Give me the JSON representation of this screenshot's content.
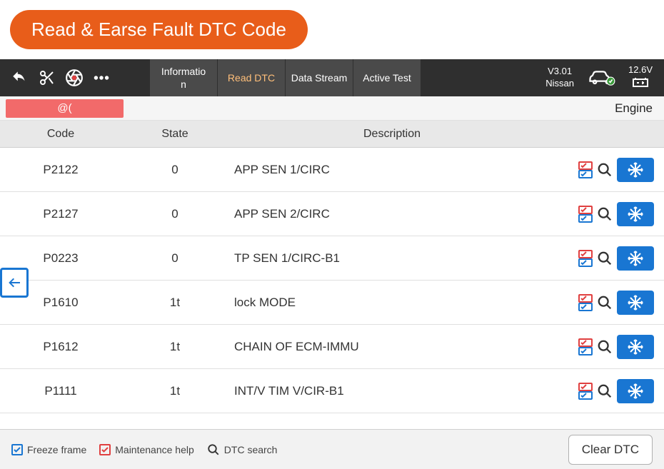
{
  "title_pill": "Read & Earse Fault DTC Code",
  "toolbar": {
    "tabs": [
      {
        "label": "Informatio\nn",
        "active": false
      },
      {
        "label": "Read DTC",
        "active": true
      },
      {
        "label": "Data Stream",
        "active": false
      },
      {
        "label": "Active Test",
        "active": false
      }
    ],
    "version": "V3.01",
    "vehicle": "Nissan",
    "voltage": "12.6V"
  },
  "progress": {
    "text": "@(",
    "label": "Engine"
  },
  "table": {
    "headers": {
      "code": "Code",
      "state": "State",
      "description": "Description"
    },
    "rows": [
      {
        "code": "P2122",
        "state": "0",
        "desc": "APP SEN 1/CIRC"
      },
      {
        "code": "P2127",
        "state": "0",
        "desc": "APP SEN 2/CIRC"
      },
      {
        "code": "P0223",
        "state": "0",
        "desc": "TP SEN 1/CIRC-B1"
      },
      {
        "code": "P1610",
        "state": "1t",
        "desc": "lock MODE"
      },
      {
        "code": "P1612",
        "state": "1t",
        "desc": "CHAIN OF ECM-IMMU"
      },
      {
        "code": "P1111",
        "state": "1t",
        "desc": "INT/V TIM V/CIR-B1"
      }
    ]
  },
  "legend": {
    "freeze": "Freeze frame",
    "maint": "Maintenance help",
    "search": "DTC search"
  },
  "clear_button": "Clear DTC",
  "colors": {
    "accent_orange": "#e85d1a",
    "toolbar_bg": "#2f2f2f",
    "tab_bg": "#4a4a4a",
    "active_tab_text": "#ffbf7a",
    "progress_red": "#f26a6a",
    "freeze_blue": "#1976d2",
    "maint_red": "#e04040"
  }
}
